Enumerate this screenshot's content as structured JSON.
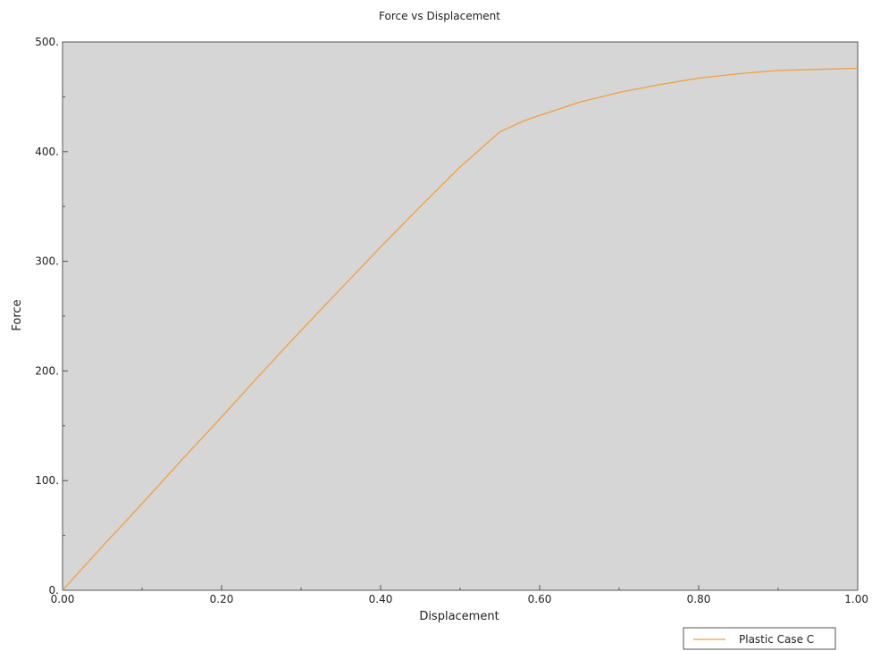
{
  "chart_data": {
    "type": "line",
    "title": "Force vs Displacement",
    "xlabel": "Displacement",
    "ylabel": "Force",
    "xlim": [
      0,
      1.0
    ],
    "ylim": [
      0,
      500
    ],
    "x_ticks": [
      0,
      0.2,
      0.4,
      0.6,
      0.8,
      1.0
    ],
    "x_tick_labels": [
      "0.00",
      "0.20",
      "0.40",
      "0.60",
      "0.80",
      "1.00"
    ],
    "x_minor_step": 0.1,
    "y_ticks": [
      0,
      100,
      200,
      300,
      400,
      500
    ],
    "y_tick_labels": [
      "0.",
      "100.",
      "200.",
      "300.",
      "400.",
      "500."
    ],
    "y_minor_step": 50,
    "grid": false,
    "legend_position": "bottom-right, below plot",
    "plot_background": "#d6d6d6",
    "series": [
      {
        "name": "Plastic Case C",
        "color": "#f0a040",
        "x": [
          0,
          0.05,
          0.1,
          0.15,
          0.2,
          0.25,
          0.3,
          0.35,
          0.4,
          0.45,
          0.5,
          0.55,
          0.58,
          0.6,
          0.65,
          0.7,
          0.75,
          0.8,
          0.85,
          0.9,
          0.95,
          1.0
        ],
        "y": [
          0,
          40,
          79,
          119,
          158,
          198,
          237,
          275,
          313,
          350,
          386,
          418,
          428,
          433,
          445,
          454,
          461,
          467,
          471,
          474,
          475,
          476
        ]
      }
    ]
  }
}
